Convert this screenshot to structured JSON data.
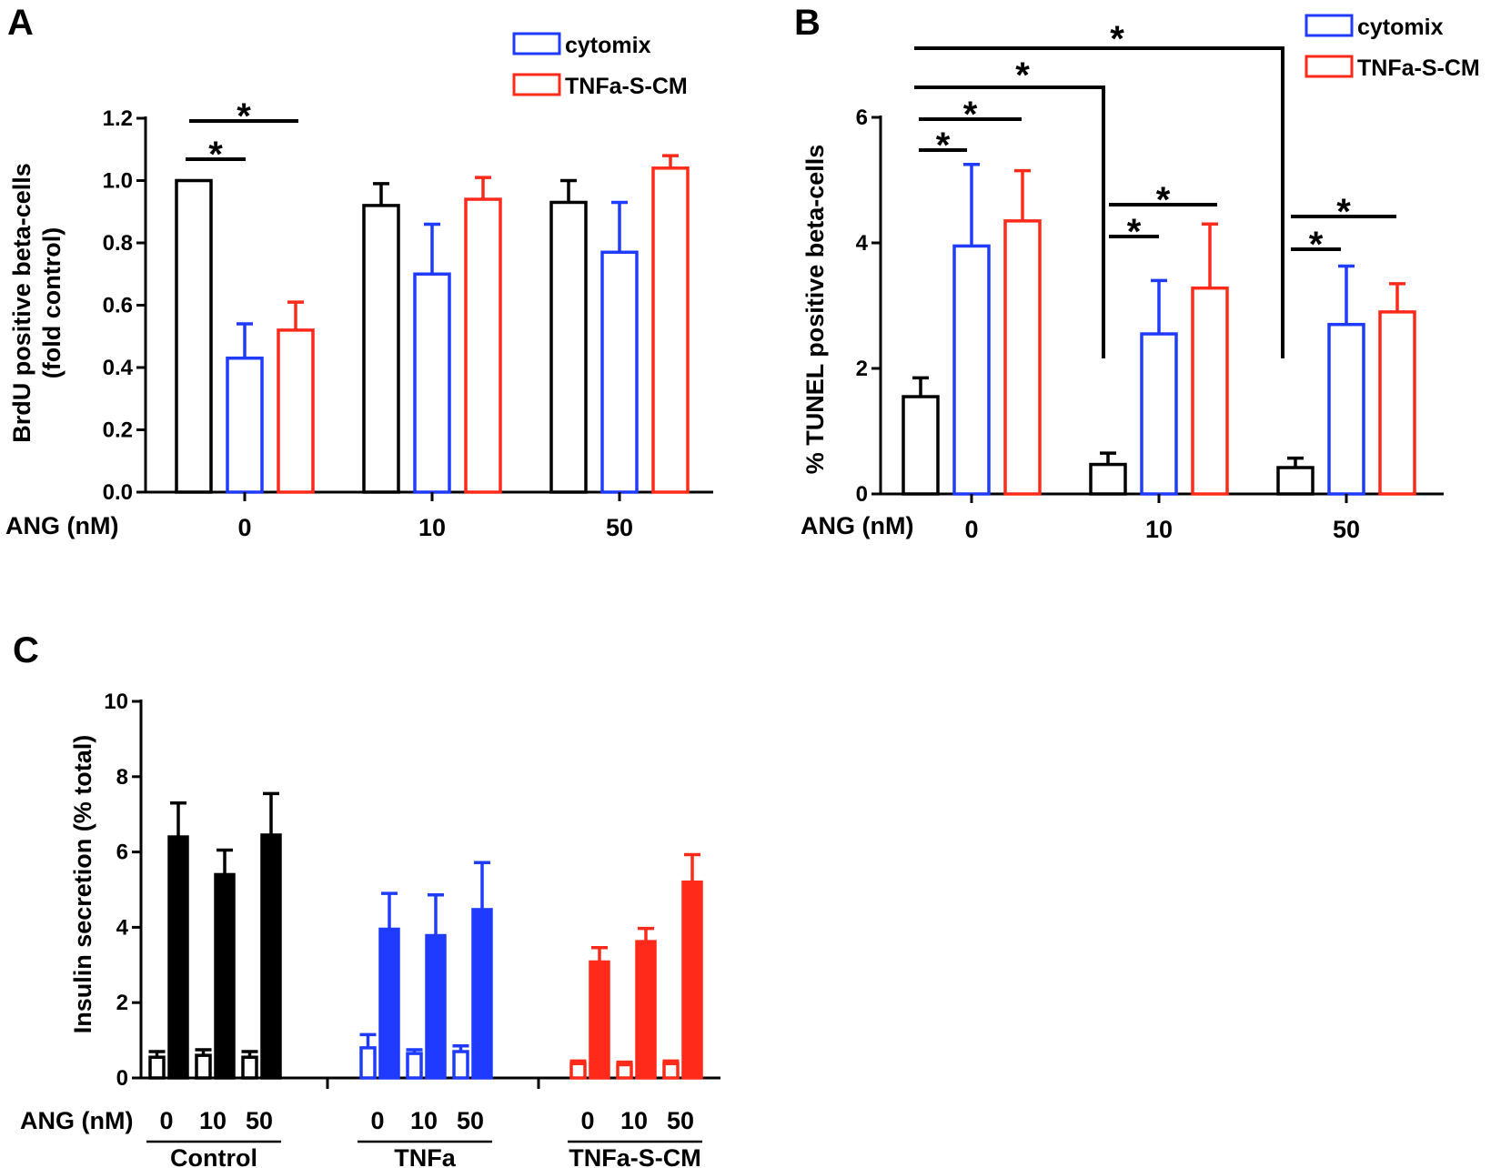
{
  "colors": {
    "control": "#000000",
    "cytomix": "#1f3bff",
    "tnfa_s_cm": "#ff2a1a"
  },
  "chart_data": [
    {
      "panel": "A",
      "type": "bar",
      "ylabel_line1": "BrdU positive beta-cells",
      "ylabel_line2": "(fold control)",
      "xlabel": "ANG (nM)",
      "categories": [
        "0",
        "10",
        "50"
      ],
      "ylim": [
        0,
        1.2
      ],
      "yticks": [
        "0.0",
        "0.2",
        "0.4",
        "0.6",
        "0.8",
        "1.0",
        "1.2"
      ],
      "legend": [
        "cytomix",
        "TNFa-S-CM"
      ],
      "series": [
        {
          "name": "control",
          "color": "#000000",
          "values": [
            1.0,
            0.92,
            0.93
          ],
          "errors": [
            0.0,
            0.07,
            0.07
          ]
        },
        {
          "name": "cytomix",
          "color": "#1f3bff",
          "values": [
            0.43,
            0.7,
            0.77
          ],
          "errors": [
            0.11,
            0.16,
            0.16
          ]
        },
        {
          "name": "TNFa-S-CM",
          "color": "#ff2a1a",
          "values": [
            0.52,
            0.94,
            1.04
          ],
          "errors": [
            0.09,
            0.07,
            0.04
          ]
        }
      ],
      "annotations": [
        "*",
        "*"
      ]
    },
    {
      "panel": "B",
      "type": "bar",
      "ylabel": "% TUNEL positive beta-cells",
      "xlabel": "ANG (nM)",
      "categories": [
        "0",
        "10",
        "50"
      ],
      "ylim": [
        0,
        6
      ],
      "yticks": [
        "0",
        "2",
        "4",
        "6"
      ],
      "legend": [
        "cytomix",
        "TNFa-S-CM"
      ],
      "series": [
        {
          "name": "control",
          "color": "#000000",
          "values": [
            1.55,
            0.47,
            0.42
          ],
          "errors": [
            0.3,
            0.18,
            0.15
          ]
        },
        {
          "name": "cytomix",
          "color": "#1f3bff",
          "values": [
            3.95,
            2.55,
            2.7
          ],
          "errors": [
            1.3,
            0.85,
            0.93
          ]
        },
        {
          "name": "TNFa-S-CM",
          "color": "#ff2a1a",
          "values": [
            4.35,
            3.28,
            2.9
          ],
          "errors": [
            0.8,
            1.02,
            0.45
          ]
        }
      ],
      "annotations": [
        "*",
        "*",
        "*",
        "*",
        "*",
        "*",
        "*",
        "*"
      ]
    },
    {
      "panel": "C",
      "type": "bar",
      "ylabel": "Insulin secretion (% total)",
      "xlabel": "ANG (nM)",
      "ylim": [
        0,
        10
      ],
      "yticks": [
        "0",
        "2",
        "4",
        "6",
        "8",
        "10"
      ],
      "groups": [
        {
          "name": "Control",
          "color": "#000000",
          "doses": [
            "0",
            "10",
            "50"
          ],
          "basal": [
            0.55,
            0.6,
            0.55
          ],
          "basal_err": [
            0.15,
            0.15,
            0.15
          ],
          "stim": [
            6.4,
            5.4,
            6.45
          ],
          "stim_err": [
            0.9,
            0.65,
            1.1
          ]
        },
        {
          "name": "TNFa",
          "color": "#1f3bff",
          "doses": [
            "0",
            "10",
            "50"
          ],
          "basal": [
            0.8,
            0.65,
            0.7
          ],
          "basal_err": [
            0.35,
            0.1,
            0.15
          ],
          "stim": [
            3.95,
            3.78,
            4.47
          ],
          "stim_err": [
            0.95,
            1.08,
            1.25
          ]
        },
        {
          "name": "TNFa-S-CM",
          "color": "#ff2a1a",
          "doses": [
            "0",
            "10",
            "50"
          ],
          "basal": [
            0.38,
            0.35,
            0.38
          ],
          "basal_err": [
            0.07,
            0.07,
            0.07
          ],
          "stim": [
            3.08,
            3.62,
            5.2
          ],
          "stim_err": [
            0.38,
            0.35,
            0.73
          ]
        }
      ]
    }
  ]
}
